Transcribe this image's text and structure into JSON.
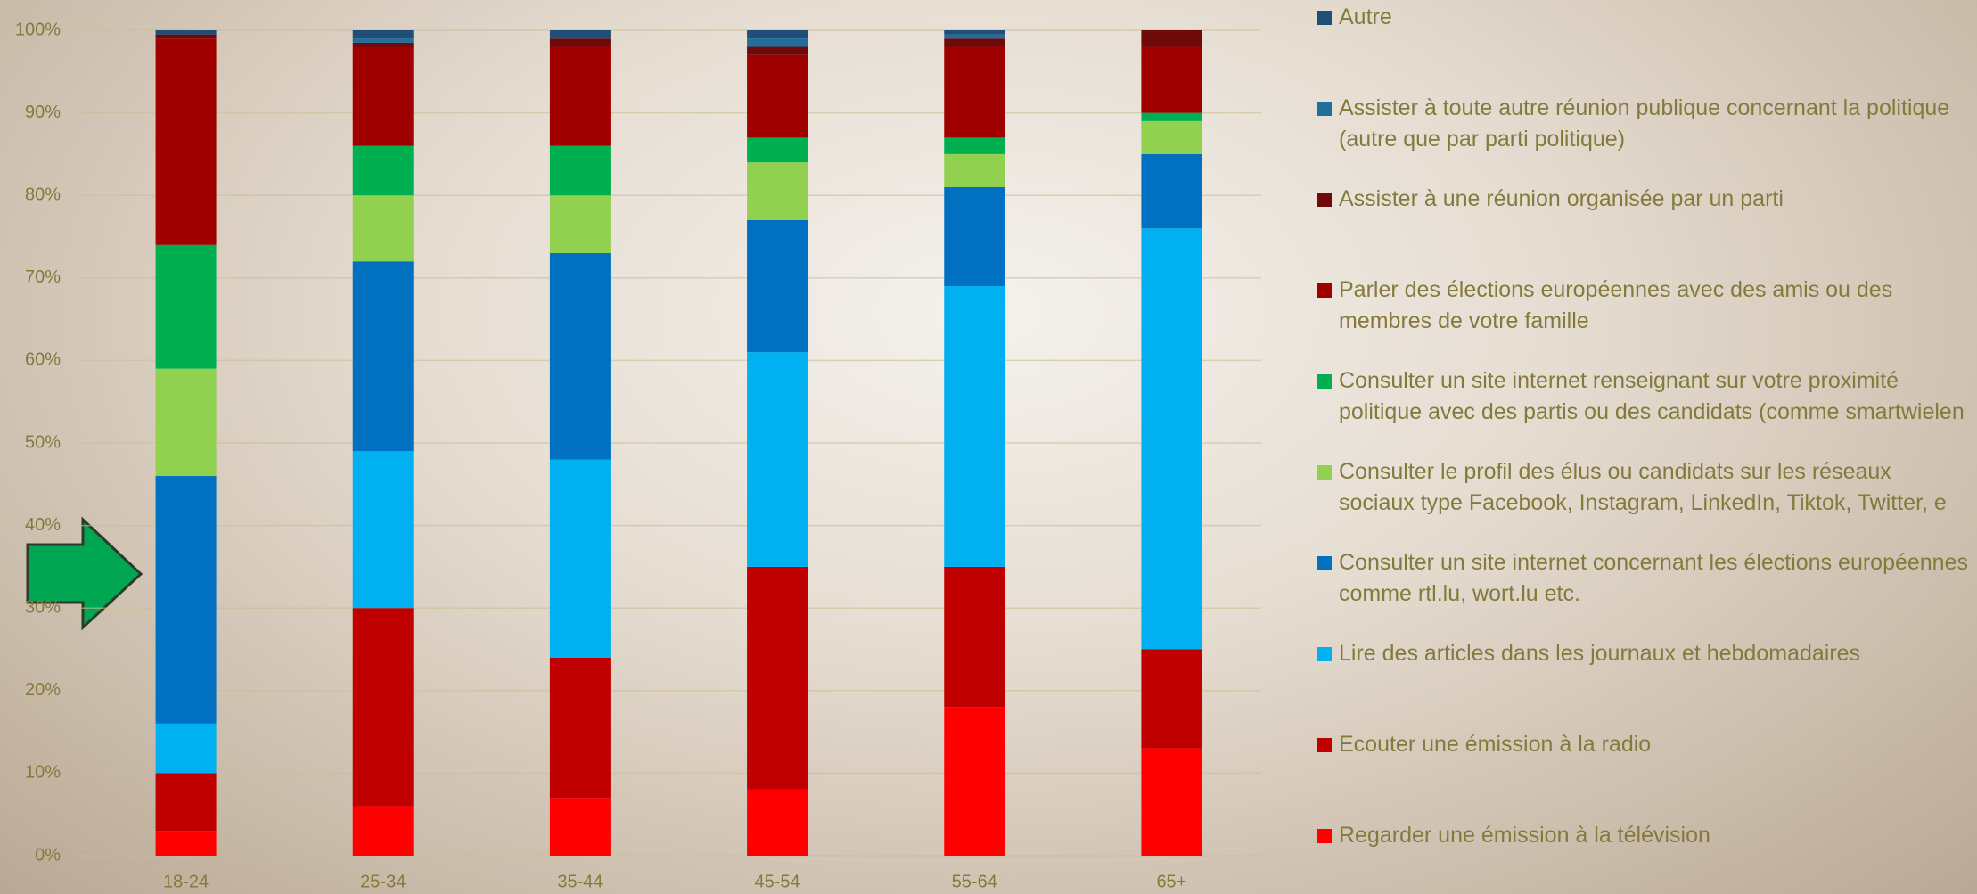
{
  "chart_data": {
    "type": "stacked_bar",
    "categories": [
      "18-24",
      "25-34",
      "35-44",
      "45-54",
      "55-64",
      "65+"
    ],
    "series": [
      {
        "name": "Regarder une émission à la télévision",
        "color": "#FF0000",
        "values": [
          3,
          6,
          7,
          8,
          18,
          13
        ]
      },
      {
        "name": "Ecouter une émission à la radio",
        "color": "#C00000",
        "values": [
          7,
          24,
          17,
          27,
          17,
          12
        ]
      },
      {
        "name": "Lire des articles dans les journaux et hebdomadaires",
        "color": "#00B0F0",
        "values": [
          6,
          19,
          24,
          26,
          34,
          51
        ]
      },
      {
        "name": "Consulter un site internet concernant les élections européennes comme rtl.lu, wort.lu etc.",
        "color": "#0070C0",
        "values": [
          30,
          23,
          25,
          16,
          12,
          9
        ]
      },
      {
        "name": "Consulter le profil des élus ou candidats sur les réseaux sociaux type Facebook, Instagram, LinkedIn, Tiktok, Twitter, e",
        "color": "#92D050",
        "values": [
          13,
          8,
          7,
          7,
          4,
          4
        ]
      },
      {
        "name": "Consulter un site internet renseignant sur votre proximité politique avec des partis ou des candidats (comme smartwielen",
        "color": "#00B050",
        "values": [
          15,
          6,
          6,
          3,
          2,
          1
        ]
      },
      {
        "name": "Parler des élections européennes avec des amis ou des membres de votre famille",
        "color": "#A00000",
        "values": [
          25,
          12,
          12,
          10,
          11,
          8
        ]
      },
      {
        "name": "Assister à une réunion organisée par un parti",
        "color": "#6E0A0A",
        "values": [
          0.5,
          0.5,
          1,
          1,
          1,
          2
        ]
      },
      {
        "name": "Assister à toute autre réunion publique concernant la politique (autre que par parti politique)",
        "color": "#1F6E9C",
        "values": [
          0,
          0.5,
          0,
          1,
          0.5,
          0
        ]
      },
      {
        "name": "Autre",
        "color": "#1F4E79",
        "values": [
          0.5,
          1,
          1,
          1,
          0.5,
          0
        ]
      }
    ],
    "ylim": [
      0,
      100
    ],
    "yticks": [
      {
        "value": 0,
        "label": "0%"
      },
      {
        "value": 10,
        "label": "10%"
      },
      {
        "value": 20,
        "label": "20%"
      },
      {
        "value": 30,
        "label": "30%"
      },
      {
        "value": 40,
        "label": "40%"
      },
      {
        "value": 50,
        "label": "50%"
      },
      {
        "value": 60,
        "label": "60%"
      },
      {
        "value": 70,
        "label": "70%"
      },
      {
        "value": 80,
        "label": "80%"
      },
      {
        "value": 90,
        "label": "90%"
      },
      {
        "value": 100,
        "label": "100%"
      }
    ],
    "grid": true
  }
}
